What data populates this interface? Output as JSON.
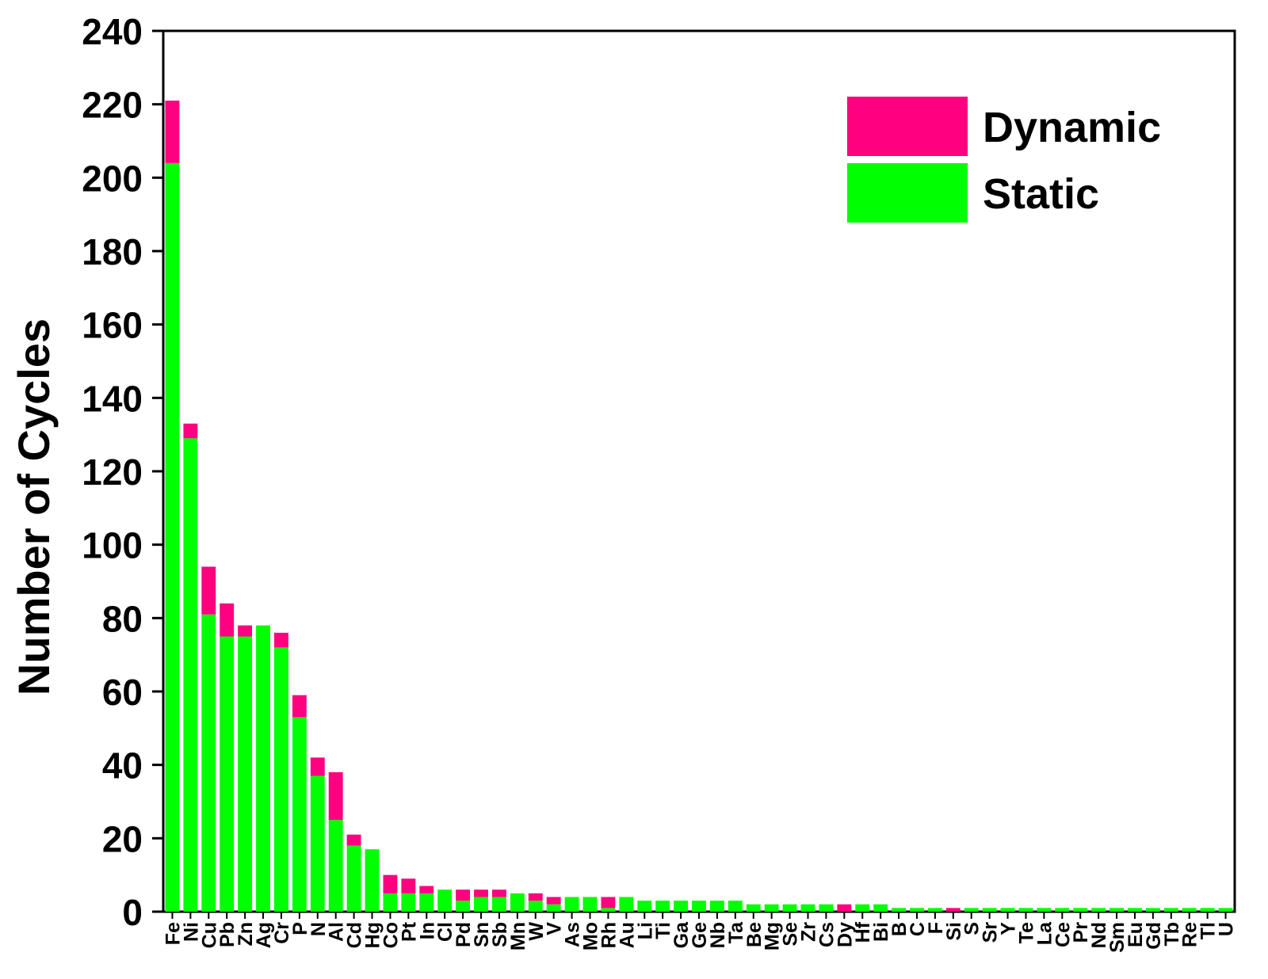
{
  "chart_data": {
    "type": "bar",
    "stacked": true,
    "title": "",
    "xlabel": "",
    "ylabel": "Number of Cycles",
    "ylim": [
      0,
      240
    ],
    "yticks": [
      0,
      20,
      40,
      60,
      80,
      100,
      120,
      140,
      160,
      180,
      200,
      220,
      240
    ],
    "grid": false,
    "legend_position": "top-right",
    "categories": [
      "Fe",
      "Ni",
      "Cu",
      "Pb",
      "Zn",
      "Ag",
      "Cr",
      "P",
      "N",
      "Al",
      "Cd",
      "Hg",
      "Co",
      "Pt",
      "In",
      "Cl",
      "Pd",
      "Sn",
      "Sb",
      "Mn",
      "W",
      "V",
      "As",
      "Mo",
      "Rh",
      "Au",
      "Li",
      "Ti",
      "Ga",
      "Ge",
      "Nb",
      "Ta",
      "Be",
      "Mg",
      "Se",
      "Zr",
      "Cs",
      "Dy",
      "Hf",
      "Bi",
      "B",
      "C",
      "F",
      "Si",
      "S",
      "Sr",
      "Y",
      "Te",
      "La",
      "Ce",
      "Pr",
      "Nd",
      "Sm",
      "Eu",
      "Gd",
      "Tb",
      "Re",
      "Tl",
      "U"
    ],
    "series": [
      {
        "name": "Static",
        "color": "#00ff00",
        "values": [
          204,
          129,
          81,
          75,
          75,
          78,
          72,
          53,
          37,
          25,
          18,
          17,
          5,
          5,
          5,
          6,
          3,
          4,
          4,
          5,
          3,
          2,
          4,
          4,
          1,
          4,
          3,
          3,
          3,
          3,
          3,
          3,
          2,
          2,
          2,
          2,
          2,
          0,
          2,
          2,
          1,
          1,
          1,
          0,
          1,
          1,
          1,
          1,
          1,
          1,
          1,
          1,
          1,
          1,
          1,
          1,
          1,
          1,
          1
        ]
      },
      {
        "name": "Dynamic",
        "color": "#ff0080",
        "values": [
          17,
          4,
          13,
          9,
          3,
          0,
          4,
          6,
          5,
          13,
          3,
          0,
          5,
          4,
          2,
          0,
          3,
          2,
          2,
          0,
          2,
          2,
          0,
          0,
          3,
          0,
          0,
          0,
          0,
          0,
          0,
          0,
          0,
          0,
          0,
          0,
          0,
          2,
          0,
          0,
          0,
          0,
          0,
          1,
          0,
          0,
          0,
          0,
          0,
          0,
          0,
          0,
          0,
          0,
          0,
          0,
          0,
          0,
          0
        ]
      }
    ]
  }
}
